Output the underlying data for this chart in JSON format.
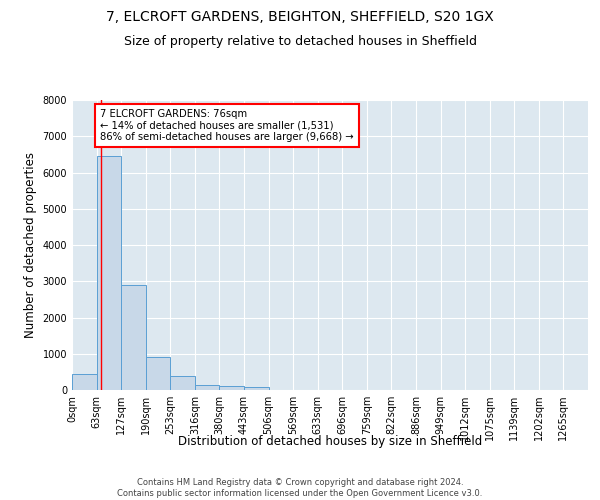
{
  "title_line1": "7, ELCROFT GARDENS, BEIGHTON, SHEFFIELD, S20 1GX",
  "title_line2": "Size of property relative to detached houses in Sheffield",
  "xlabel": "Distribution of detached houses by size in Sheffield",
  "ylabel": "Number of detached properties",
  "footnote": "Contains HM Land Registry data © Crown copyright and database right 2024.\nContains public sector information licensed under the Open Government Licence v3.0.",
  "bar_labels": [
    "0sqm",
    "63sqm",
    "127sqm",
    "190sqm",
    "253sqm",
    "316sqm",
    "380sqm",
    "443sqm",
    "506sqm",
    "569sqm",
    "633sqm",
    "696sqm",
    "759sqm",
    "822sqm",
    "886sqm",
    "949sqm",
    "1012sqm",
    "1075sqm",
    "1139sqm",
    "1202sqm",
    "1265sqm"
  ],
  "bar_values": [
    430,
    6450,
    2900,
    920,
    390,
    150,
    100,
    75,
    0,
    0,
    0,
    0,
    0,
    0,
    0,
    0,
    0,
    0,
    0,
    0,
    0
  ],
  "bar_color": "#c8d8e8",
  "bar_edge_color": "#5a9fd4",
  "annotation_text": "7 ELCROFT GARDENS: 76sqm\n← 14% of detached houses are smaller (1,531)\n86% of semi-detached houses are larger (9,668) →",
  "annotation_box_color": "white",
  "annotation_box_edge_color": "red",
  "redline_x": 1.2,
  "ylim": [
    0,
    8000
  ],
  "yticks": [
    0,
    1000,
    2000,
    3000,
    4000,
    5000,
    6000,
    7000,
    8000
  ],
  "plot_bg_color": "#dde8f0",
  "title_fontsize": 10,
  "subtitle_fontsize": 9,
  "axis_label_fontsize": 8.5,
  "tick_fontsize": 7
}
